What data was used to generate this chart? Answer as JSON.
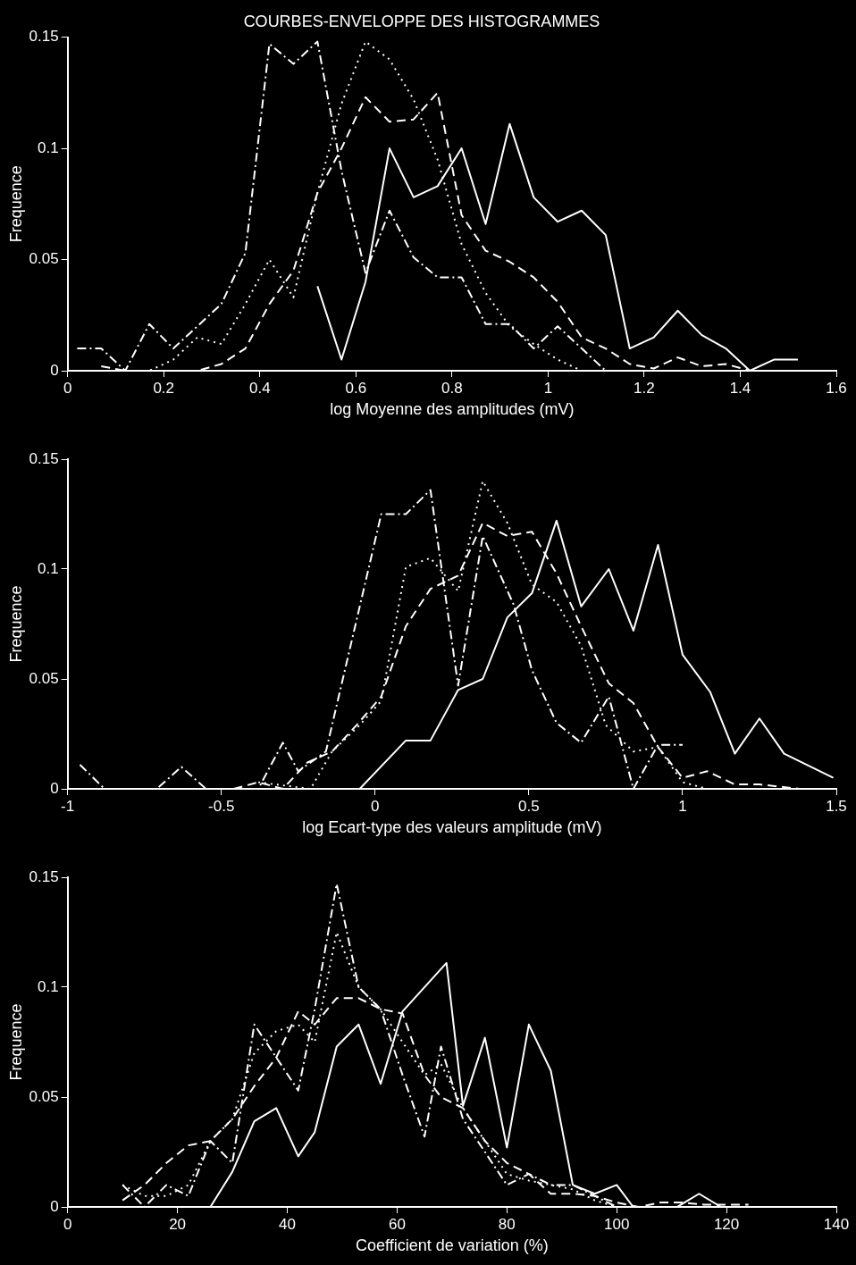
{
  "chart_data": [
    {
      "type": "line",
      "title": "COURBES-ENVELOPPE DES HISTOGRAMMES",
      "xlabel": "log Moyenne des amplitudes (mV)",
      "ylabel": "Frequence",
      "xlim": [
        0,
        1.6
      ],
      "xticks": [
        0,
        0.2,
        0.4,
        0.6,
        0.8,
        1,
        1.2,
        1.4,
        1.6
      ],
      "ylim": [
        0,
        0.15
      ],
      "yticks": [
        0,
        0.05,
        0.1,
        0.15
      ],
      "marker": "none",
      "series": [
        {
          "color": "#ffffff",
          "line_style": "solid",
          "x": [
            0.52,
            0.57,
            0.62,
            0.67,
            0.72,
            0.77,
            0.82,
            0.87,
            0.92,
            0.97,
            1.02,
            1.07,
            1.12,
            1.17,
            1.22,
            1.27,
            1.32,
            1.37,
            1.42,
            1.47,
            1.52
          ],
          "values": [
            0.038,
            0.005,
            0.04,
            0.1,
            0.078,
            0.083,
            0.1,
            0.066,
            0.111,
            0.078,
            0.067,
            0.072,
            0.061,
            0.01,
            0.015,
            0.027,
            0.016,
            0.01,
            0,
            0.005,
            0.005
          ]
        },
        {
          "color": "#ffffff",
          "line_style": "dashed",
          "x": [
            0.07,
            0.12,
            0.17,
            0.22,
            0.27,
            0.32,
            0.37,
            0.42,
            0.47,
            0.52,
            0.57,
            0.62,
            0.67,
            0.72,
            0.77,
            0.82,
            0.87,
            0.92,
            0.97,
            1.02,
            1.07,
            1.12,
            1.17,
            1.22,
            1.27,
            1.32,
            1.37,
            1.42
          ],
          "values": [
            0.002,
            0,
            0,
            0,
            0,
            0.003,
            0.01,
            0.03,
            0.045,
            0.08,
            0.1,
            0.123,
            0.112,
            0.113,
            0.125,
            0.07,
            0.054,
            0.049,
            0.042,
            0.031,
            0.015,
            0.01,
            0.003,
            0.001,
            0.006,
            0.002,
            0.003,
            0
          ]
        },
        {
          "color": "#ffffff",
          "line_style": "dotted",
          "x": [
            0.12,
            0.17,
            0.22,
            0.27,
            0.32,
            0.37,
            0.42,
            0.47,
            0.52,
            0.57,
            0.62,
            0.67,
            0.72,
            0.77,
            0.82,
            0.87,
            0.92,
            0.97,
            1.02,
            1.07,
            1.12
          ],
          "values": [
            0,
            0,
            0.005,
            0.015,
            0.012,
            0.03,
            0.05,
            0.033,
            0.08,
            0.12,
            0.148,
            0.14,
            0.122,
            0.095,
            0.057,
            0.035,
            0.02,
            0.012,
            0.005,
            0,
            0
          ]
        },
        {
          "color": "#ffffff",
          "line_style": "dashdot",
          "x": [
            0.02,
            0.07,
            0.12,
            0.17,
            0.22,
            0.27,
            0.32,
            0.37,
            0.42,
            0.47,
            0.52,
            0.57,
            0.62,
            0.67,
            0.72,
            0.77,
            0.82,
            0.87,
            0.92,
            0.97,
            1.02,
            1.07,
            1.12
          ],
          "values": [
            0.01,
            0.01,
            0,
            0.021,
            0.01,
            0.02,
            0.03,
            0.053,
            0.147,
            0.138,
            0.148,
            0.09,
            0.044,
            0.072,
            0.051,
            0.042,
            0.042,
            0.021,
            0.021,
            0.01,
            0.02,
            0.01,
            0
          ]
        }
      ]
    },
    {
      "type": "line",
      "xlabel": "log Ecart-type des valeurs amplitude (mV)",
      "ylabel": "Frequence",
      "xlim": [
        -1,
        1.5
      ],
      "xticks": [
        -1,
        -0.5,
        0,
        0.5,
        1,
        1.5
      ],
      "ylim": [
        0,
        0.15
      ],
      "yticks": [
        0,
        0.05,
        0.1,
        0.15
      ],
      "marker": "none",
      "series": [
        {
          "color": "#ffffff",
          "line_style": "solid",
          "x": [
            -0.05,
            0.1,
            0.18,
            0.27,
            0.35,
            0.43,
            0.51,
            0.59,
            0.67,
            0.76,
            0.84,
            0.92,
            1.0,
            1.09,
            1.17,
            1.25,
            1.33,
            1.49
          ],
          "values": [
            0,
            0.022,
            0.022,
            0.045,
            0.05,
            0.078,
            0.089,
            0.122,
            0.083,
            0.1,
            0.072,
            0.111,
            0.061,
            0.044,
            0.016,
            0.032,
            0.016,
            0.005
          ]
        },
        {
          "color": "#ffffff",
          "line_style": "dashed",
          "x": [
            -0.46,
            -0.38,
            -0.3,
            -0.22,
            -0.14,
            -0.06,
            0.02,
            0.1,
            0.18,
            0.27,
            0.35,
            0.43,
            0.51,
            0.59,
            0.67,
            0.76,
            0.84,
            0.92,
            1.0,
            1.08,
            1.17,
            1.25,
            1.38
          ],
          "values": [
            0,
            0.003,
            0,
            0.012,
            0.017,
            0.029,
            0.042,
            0.074,
            0.091,
            0.097,
            0.121,
            0.115,
            0.117,
            0.098,
            0.074,
            0.048,
            0.039,
            0.019,
            0.005,
            0.008,
            0.002,
            0.002,
            0
          ]
        },
        {
          "color": "#ffffff",
          "line_style": "dotted",
          "x": [
            -0.38,
            -0.21,
            -0.14,
            -0.05,
            0.02,
            0.1,
            0.18,
            0.27,
            0.35,
            0.43,
            0.51,
            0.59,
            0.67,
            0.75,
            0.84,
            0.92,
            1.0,
            1.08
          ],
          "values": [
            0.003,
            0,
            0.017,
            0.029,
            0.04,
            0.101,
            0.105,
            0.09,
            0.14,
            0.121,
            0.093,
            0.085,
            0.065,
            0.029,
            0.017,
            0.019,
            0.003,
            0
          ]
        },
        {
          "color": "#ffffff",
          "line_style": "dashdot",
          "x": [
            -0.96,
            -0.88,
            -0.71,
            -0.63,
            -0.55,
            -0.38,
            -0.3,
            -0.25,
            -0.16,
            0.02,
            0.1,
            0.18,
            0.27,
            0.35,
            0.45,
            0.51,
            0.59,
            0.67,
            0.76,
            0.84,
            0.92,
            1.0
          ],
          "values": [
            0.011,
            0,
            0,
            0.01,
            0,
            0,
            0.021,
            0.008,
            0.017,
            0.125,
            0.125,
            0.136,
            0.047,
            0.115,
            0.084,
            0.054,
            0.03,
            0.021,
            0.042,
            0,
            0.02,
            0.02
          ]
        }
      ]
    },
    {
      "type": "line",
      "xlabel": "Coefficient de variation (%)",
      "ylabel": "Frequence",
      "xlim": [
        0,
        140
      ],
      "xticks": [
        0,
        20,
        40,
        60,
        80,
        100,
        120,
        140
      ],
      "ylim": [
        0,
        0.15
      ],
      "yticks": [
        0,
        0.05,
        0.1,
        0.15
      ],
      "marker": "none",
      "series": [
        {
          "color": "#ffffff",
          "line_style": "solid",
          "x": [
            26,
            30,
            34,
            38,
            42,
            45,
            49,
            53,
            57,
            61,
            69,
            72,
            76,
            80,
            84,
            88,
            92,
            96,
            100,
            103,
            111,
            115,
            119
          ],
          "values": [
            0,
            0.016,
            0.039,
            0.045,
            0.023,
            0.034,
            0.073,
            0.083,
            0.056,
            0.089,
            0.111,
            0.046,
            0.077,
            0.027,
            0.083,
            0.062,
            0.01,
            0.006,
            0.01,
            0,
            0,
            0.006,
            0
          ]
        },
        {
          "color": "#ffffff",
          "line_style": "dashed",
          "x": [
            10,
            14,
            18,
            22,
            26,
            30,
            34,
            38,
            42,
            45,
            49,
            53,
            57,
            61,
            65,
            68,
            72,
            76,
            80,
            84,
            88,
            92,
            96,
            100,
            104,
            108,
            112,
            116,
            120,
            124
          ],
          "values": [
            0.003,
            0.01,
            0.02,
            0.028,
            0.03,
            0.04,
            0.055,
            0.068,
            0.089,
            0.083,
            0.095,
            0.095,
            0.09,
            0.088,
            0.06,
            0.05,
            0.045,
            0.03,
            0.02,
            0.015,
            0.006,
            0.006,
            0.005,
            0.002,
            0,
            0.002,
            0.002,
            0.001,
            0.001,
            0.001
          ]
        },
        {
          "color": "#ffffff",
          "line_style": "dotted",
          "x": [
            10,
            14,
            18,
            22,
            26,
            30,
            34,
            38,
            42,
            45,
            49,
            53,
            57,
            61,
            65,
            68,
            72,
            76,
            80,
            84,
            88,
            92,
            96,
            100
          ],
          "values": [
            0.01,
            0.005,
            0.005,
            0.01,
            0.03,
            0.04,
            0.07,
            0.08,
            0.083,
            0.075,
            0.125,
            0.1,
            0.09,
            0.075,
            0.06,
            0.065,
            0.045,
            0.03,
            0.015,
            0.012,
            0.01,
            0.008,
            0.003,
            0
          ]
        },
        {
          "color": "#ffffff",
          "line_style": "dashdot",
          "x": [
            10,
            14,
            18,
            22,
            26,
            30,
            34,
            38,
            42,
            45,
            49,
            53,
            57,
            61,
            65,
            68,
            72,
            76,
            80,
            84,
            88,
            92,
            96,
            100
          ],
          "values": [
            0.01,
            0,
            0.01,
            0.005,
            0.03,
            0.02,
            0.083,
            0.068,
            0.053,
            0.09,
            0.147,
            0.1,
            0.09,
            0.06,
            0.032,
            0.073,
            0.04,
            0.025,
            0.01,
            0.015,
            0.01,
            0.01,
            0.005,
            0
          ]
        }
      ]
    }
  ]
}
